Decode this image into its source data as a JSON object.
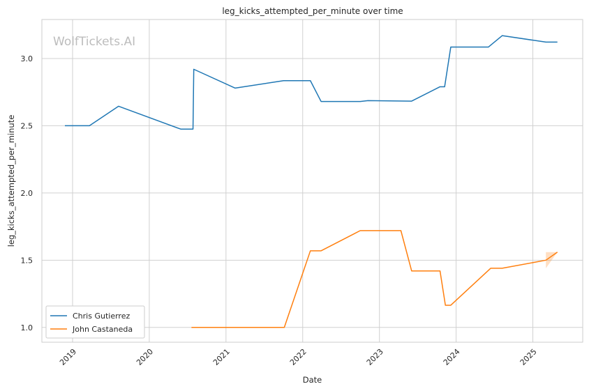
{
  "watermark": "WolfTickets.AI",
  "colors": {
    "chris": "#1f77b4",
    "john": "#ff7f0e",
    "grid": "#d0d0d0",
    "axes_edge": "#cccccc"
  },
  "chart_data": {
    "type": "line",
    "title": "leg_kicks_attempted_per_minute over time",
    "xlabel": "Date",
    "ylabel": "leg_kicks_attempted_per_minute",
    "xlim": [
      2018.6,
      2025.65
    ],
    "ylim": [
      0.89,
      3.29
    ],
    "x_ticks": [
      2019,
      2020,
      2021,
      2022,
      2023,
      2024,
      2025
    ],
    "x_tick_labels": [
      "2019",
      "2020",
      "2021",
      "2022",
      "2023",
      "2024",
      "2025"
    ],
    "y_ticks": [
      1.0,
      1.5,
      2.0,
      2.5,
      3.0
    ],
    "y_tick_labels": [
      "1.0",
      "1.5",
      "2.0",
      "2.5",
      "3.0"
    ],
    "grid": true,
    "legend_position": "lower-left",
    "series": [
      {
        "name": "Chris Gutierrez",
        "color": "#1f77b4",
        "x": [
          2018.9,
          2019.22,
          2019.6,
          2020.41,
          2020.57,
          2020.58,
          2021.12,
          2021.75,
          2022.1,
          2022.24,
          2022.75,
          2022.85,
          2023.42,
          2023.79,
          2023.85,
          2023.93,
          2024.42,
          2024.6,
          2025.17,
          2025.32
        ],
        "y": [
          2.5,
          2.5,
          2.645,
          2.475,
          2.475,
          2.92,
          2.78,
          2.835,
          2.835,
          2.68,
          2.68,
          2.687,
          2.683,
          2.79,
          2.79,
          3.085,
          3.085,
          3.17,
          3.122,
          3.122
        ]
      },
      {
        "name": "John Castaneda",
        "color": "#ff7f0e",
        "x": [
          2020.55,
          2021.76,
          2022.1,
          2022.24,
          2022.75,
          2023.28,
          2023.42,
          2023.79,
          2023.86,
          2023.93,
          2024.45,
          2024.6,
          2025.17,
          2025.32
        ],
        "y": [
          1.0,
          1.0,
          1.57,
          1.57,
          1.72,
          1.72,
          1.42,
          1.42,
          1.165,
          1.165,
          1.44,
          1.44,
          1.5,
          1.56
        ],
        "band": {
          "x": [
            2025.17,
            2025.32
          ],
          "y_low": [
            1.44,
            1.56
          ],
          "y_high": [
            1.56,
            1.56
          ]
        }
      }
    ]
  }
}
